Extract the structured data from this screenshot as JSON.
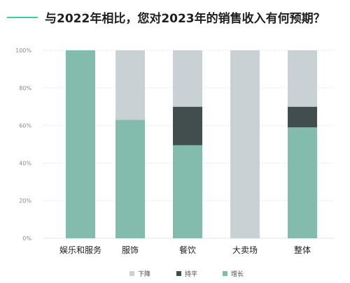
{
  "title": "与2022年相比，您对2023年的销售收入有何预期？",
  "colors": {
    "accent": "#3ccf9d",
    "decline": "#c9d1d4",
    "flat": "#424e4e",
    "growth": "#83bcad"
  },
  "chart_data": {
    "type": "bar",
    "stacked": true,
    "categories": [
      "娱乐和服务",
      "服饰",
      "餐饮",
      "大卖场",
      "整体"
    ],
    "series": [
      {
        "name": "增长",
        "values": [
          100,
          63,
          49.5,
          0,
          59
        ]
      },
      {
        "name": "持平",
        "values": [
          0,
          0,
          20.5,
          0,
          11
        ]
      },
      {
        "name": "下降",
        "values": [
          0,
          37,
          30,
          100,
          30
        ]
      }
    ],
    "ylim": [
      0,
      100
    ],
    "yticks": [
      "0%",
      "20%",
      "40%",
      "60%",
      "80%",
      "100%"
    ],
    "grid": true,
    "legend_position": "bottom",
    "legend": [
      "下降",
      "持平",
      "增长"
    ]
  }
}
